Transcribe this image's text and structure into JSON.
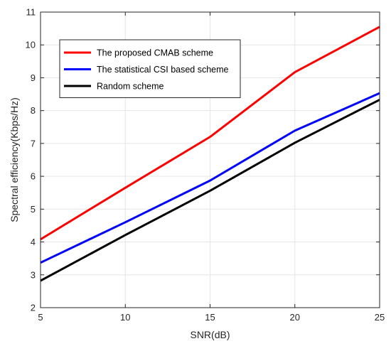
{
  "chart_data": {
    "type": "line",
    "title": "",
    "xlabel": "SNR(dB)",
    "ylabel": "Spectral efficiency(Kbps/Hz)",
    "xlim": [
      5,
      25
    ],
    "ylim": [
      2,
      11
    ],
    "xticks": [
      5,
      10,
      15,
      20,
      25
    ],
    "yticks": [
      2,
      3,
      4,
      5,
      6,
      7,
      8,
      9,
      10,
      11
    ],
    "grid": true,
    "legend_position": "top-left",
    "x": [
      5,
      10,
      15,
      20,
      25
    ],
    "series": [
      {
        "name": "The proposed CMAB scheme",
        "color": "#ff0000",
        "values": [
          4.08,
          5.65,
          7.2,
          9.17,
          10.55
        ]
      },
      {
        "name": "The statistical CSI based scheme",
        "color": "#0000ff",
        "values": [
          3.37,
          4.6,
          5.87,
          7.39,
          8.53
        ]
      },
      {
        "name": "Random scheme",
        "color": "#000000",
        "values": [
          2.82,
          4.21,
          5.56,
          7.02,
          8.33
        ]
      }
    ]
  }
}
